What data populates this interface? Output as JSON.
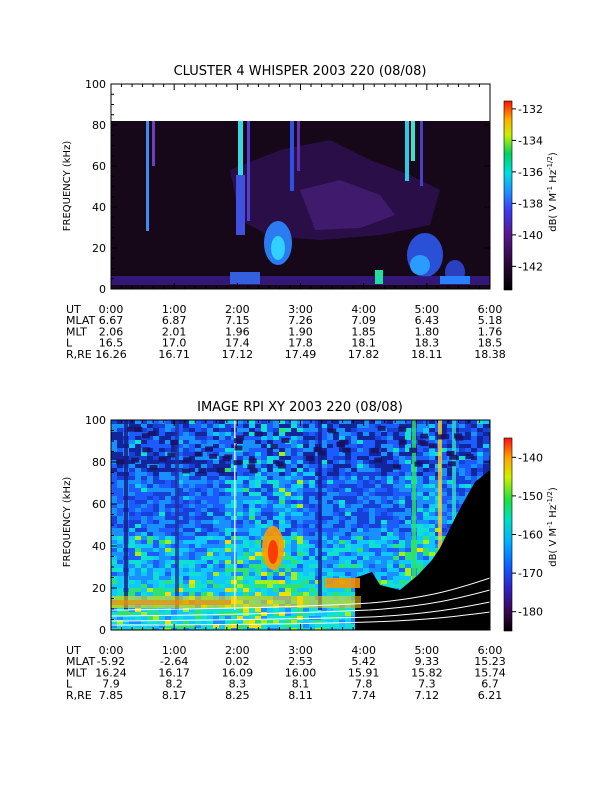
{
  "chart_data": [
    {
      "type": "heatmap",
      "title": "CLUSTER 4 WHISPER 2003 220 (08/08)",
      "ylabel": "FREQUENCY (kHz)",
      "xlim": [
        "0:00",
        "6:00"
      ],
      "ylim": [
        0,
        100
      ],
      "y_ticks": [
        "0",
        "20",
        "40",
        "60",
        "80",
        "100"
      ],
      "data_max_freq_khz": 80,
      "colorbar": {
        "label_main": "dB( V M",
        "label_sup1": "-1",
        "label_mid": " Hz",
        "label_sup2": "-1/2",
        "label_end": ")",
        "range": [
          -143.5,
          -131.5
        ],
        "ticks": [
          "-132",
          "-134",
          "-136",
          "-138",
          "-140",
          "-142"
        ]
      },
      "ephemeris": {
        "rows": [
          {
            "label": "UT",
            "values": [
              "0:00",
              "1:00",
              "2:00",
              "3:00",
              "4:00",
              "5:00",
              "6:00"
            ]
          },
          {
            "label": "MLAT",
            "values": [
              "6.67",
              "6.87",
              "7.15",
              "7.26",
              "7.09",
              "6.43",
              "5.18"
            ]
          },
          {
            "label": "MLT",
            "values": [
              "2.06",
              "2.01",
              "1.96",
              "1.90",
              "1.85",
              "1.80",
              "1.76"
            ]
          },
          {
            "label": "L",
            "values": [
              "16.5",
              "17.0",
              "17.4",
              "17.8",
              "18.1",
              "18.3",
              "18.5"
            ]
          },
          {
            "label": "R,RE",
            "values": [
              "16.26",
              "16.71",
              "17.12",
              "17.49",
              "17.82",
              "18.11",
              "18.38"
            ]
          }
        ]
      }
    },
    {
      "type": "heatmap",
      "title": "IMAGE RPI XY 2003 220 (08/08)",
      "ylabel": "FREQUENCY (kHz)",
      "xlim": [
        "0:00",
        "6:00"
      ],
      "ylim": [
        0,
        100
      ],
      "y_ticks": [
        "0",
        "20",
        "40",
        "60",
        "80",
        "100"
      ],
      "colorbar": {
        "label_main": "dB( V M",
        "label_sup1": "-1",
        "label_mid": " Hz",
        "label_sup2": "-1/2",
        "label_end": ")",
        "range": [
          -185,
          -135
        ],
        "ticks": [
          "-140",
          "-150",
          "-160",
          "-170",
          "-180"
        ]
      },
      "ephemeris": {
        "rows": [
          {
            "label": "UT",
            "values": [
              "0:00",
              "1:00",
              "2:00",
              "3:00",
              "4:00",
              "5:00",
              "6:00"
            ]
          },
          {
            "label": "MLAT",
            "values": [
              "-5.92",
              "-2.64",
              "0.02",
              "2.53",
              "5.42",
              "9.33",
              "15.23"
            ]
          },
          {
            "label": "MLT",
            "values": [
              "16.24",
              "16.17",
              "16.09",
              "16.00",
              "15.91",
              "15.82",
              "15.74"
            ]
          },
          {
            "label": "L",
            "values": [
              "7.9",
              "8.2",
              "8.3",
              "8.1",
              "7.8",
              "7.3",
              "6.7"
            ]
          },
          {
            "label": "R,RE",
            "values": [
              "7.85",
              "8.17",
              "8.25",
              "8.11",
              "7.74",
              "7.12",
              "6.21"
            ]
          }
        ]
      }
    }
  ],
  "colors": {
    "background": "#ffffff",
    "axis": "#000000",
    "cluster_bg": "#160818",
    "image_overlay_lines": "#ffffff"
  }
}
